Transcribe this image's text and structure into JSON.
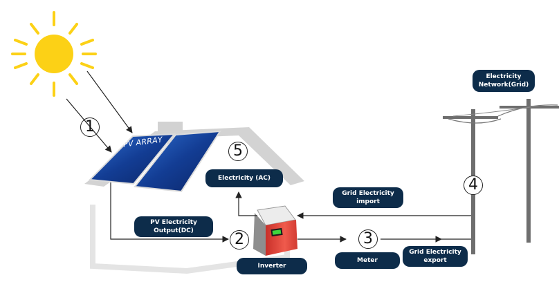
{
  "labels": {
    "pv_array": "PV ARRAY",
    "electricity_ac": "Electricity (AC)",
    "pv_output": "PV Electricity\nOutput(DC)",
    "grid_import": "Grid Electricity\nimport",
    "grid_export": "Grid Electricity\nexport",
    "network": "Electricity\nNetwork(Grid)",
    "inverter": "Inverter",
    "meter": "Meter"
  },
  "steps": {
    "one": "1",
    "two": "2",
    "three": "3",
    "four": "4",
    "five": "5"
  },
  "colors": {
    "pill": "#0d2c4a",
    "sun": "#fcd116",
    "panel": "#123a8c",
    "inverter": "#e8463c",
    "roof": "#d0d0d0",
    "pole": "#6e6e6e"
  },
  "icons": {
    "sun": "sun-icon",
    "inverter": "inverter-icon",
    "pole": "utility-pole-icon"
  }
}
